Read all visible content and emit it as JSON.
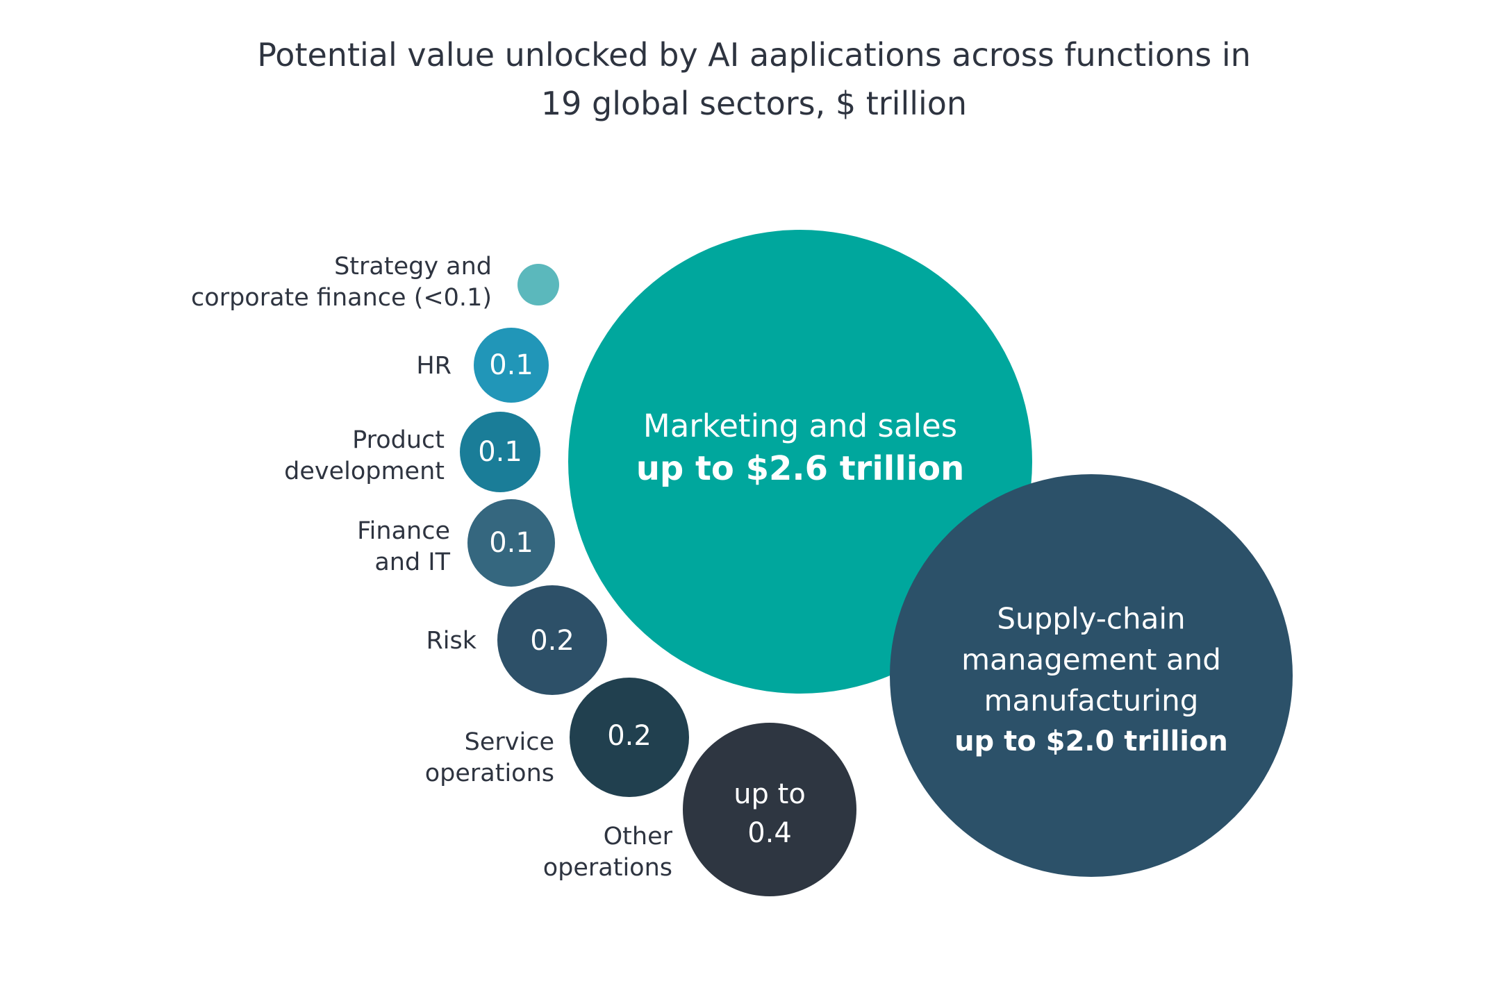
{
  "chart_data": {
    "type": "bubble",
    "title_lines": [
      "Potential value unlocked by AI aaplications across functions in",
      "19 global sectors, $ trillion"
    ],
    "series": [
      {
        "id": "strategy",
        "label_lines": [
          "Strategy and",
          "corporate finance (<0.1)"
        ],
        "value": 0.05,
        "value_lines": [],
        "color": "#5bb8bc"
      },
      {
        "id": "hr",
        "label_lines": [
          "HR"
        ],
        "value": 0.1,
        "value_lines": [
          "0.1"
        ],
        "color": "#2196b8"
      },
      {
        "id": "product-development",
        "label_lines": [
          "Product",
          "development"
        ],
        "value": 0.1,
        "value_lines": [
          "0.1"
        ],
        "color": "#1a7d98"
      },
      {
        "id": "finance-it",
        "label_lines": [
          "Finance",
          "and IT"
        ],
        "value": 0.1,
        "value_lines": [
          "0.1"
        ],
        "color": "#35677f"
      },
      {
        "id": "risk",
        "label_lines": [
          "Risk"
        ],
        "value": 0.2,
        "value_lines": [
          "0.2"
        ],
        "color": "#2d5068"
      },
      {
        "id": "service-operations",
        "label_lines": [
          "Service",
          "operations"
        ],
        "value": 0.2,
        "value_lines": [
          "0.2"
        ],
        "color": "#21404f"
      },
      {
        "id": "other-operations",
        "label_lines": [
          "Other",
          "operations"
        ],
        "value": 0.4,
        "value_lines": [
          "up to",
          "0.4"
        ],
        "color": "#2e3641"
      },
      {
        "id": "marketing-sales",
        "label_lines": [
          "Marketing and sales"
        ],
        "value": 2.6,
        "value_lines": [
          "up to $2.6 trillion"
        ],
        "color": "#00a79d"
      },
      {
        "id": "supply-chain",
        "label_lines": [
          "Supply-chain",
          "management and",
          "manufacturing"
        ],
        "value": 2.0,
        "value_lines": [
          "up to $2.0 trillion"
        ],
        "color": "#2c5169"
      }
    ]
  }
}
